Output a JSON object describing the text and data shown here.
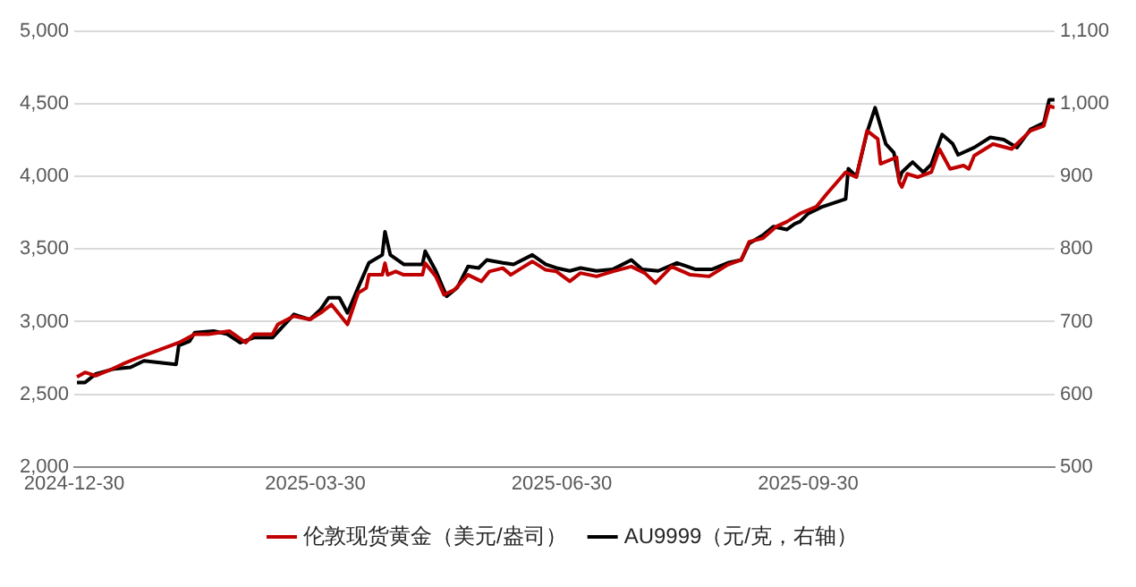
{
  "chart_data": {
    "type": "line",
    "xlim": [
      "2024-12-30",
      "2025-12-31"
    ],
    "xticks": [
      "2024-12-30",
      "2025-03-30",
      "2025-06-30",
      "2025-09-30"
    ],
    "ylim": [
      2000,
      5000
    ],
    "yticks": [
      {
        "value": 2000,
        "label": "2,000"
      },
      {
        "value": 2500,
        "label": "2,500"
      },
      {
        "value": 3000,
        "label": "3,000"
      },
      {
        "value": 3500,
        "label": "3,500"
      },
      {
        "value": 4000,
        "label": "4,000"
      },
      {
        "value": 4500,
        "label": "4,500"
      },
      {
        "value": 5000,
        "label": "5,000"
      }
    ],
    "y2lim": [
      500,
      1100
    ],
    "y2ticks": [
      500,
      600,
      700,
      800,
      900,
      {
        "value": 1000,
        "label": "1,000"
      },
      {
        "value": 1100,
        "label": "1,100"
      }
    ],
    "grid": "y",
    "legend": "bottom",
    "marker": "none",
    "line_style": "solid",
    "series": [
      {
        "name": "伦敦现货黄金（美元/盎司）",
        "color": "#c00000",
        "x": [
          "2024-12-31",
          "2025-01-03",
          "2025-01-07",
          "2025-01-13",
          "2025-01-17",
          "2025-01-23",
          "2025-02-07",
          "2025-02-13",
          "2025-02-18",
          "2025-02-26",
          "2025-03-04",
          "2025-03-07",
          "2025-03-14",
          "2025-03-16",
          "2025-03-22",
          "2025-03-28",
          "2025-04-01",
          "2025-04-05",
          "2025-04-11",
          "2025-04-15",
          "2025-04-18",
          "2025-04-19",
          "2025-04-24",
          "2025-04-25",
          "2025-04-26",
          "2025-04-29",
          "2025-05-02",
          "2025-05-09",
          "2025-05-10",
          "2025-05-14",
          "2025-05-17",
          "2025-05-21",
          "2025-05-26",
          "2025-05-31",
          "2025-06-03",
          "2025-06-08",
          "2025-06-11",
          "2025-06-15",
          "2025-06-19",
          "2025-06-24",
          "2025-06-28",
          "2025-07-03",
          "2025-07-07",
          "2025-07-13",
          "2025-07-19",
          "2025-07-26",
          "2025-07-31",
          "2025-08-04",
          "2025-08-10",
          "2025-08-17",
          "2025-08-24",
          "2025-08-31",
          "2025-09-05",
          "2025-09-08",
          "2025-09-13",
          "2025-09-18",
          "2025-09-22",
          "2025-09-27",
          "2025-10-03",
          "2025-10-07",
          "2025-10-14",
          "2025-10-18",
          "2025-10-22",
          "2025-10-26",
          "2025-10-27",
          "2025-11-02",
          "2025-11-03",
          "2025-11-04",
          "2025-11-06",
          "2025-11-10",
          "2025-11-15",
          "2025-11-18",
          "2025-11-22",
          "2025-11-27",
          "2025-11-29",
          "2025-12-01",
          "2025-12-08",
          "2025-12-15",
          "2025-12-22",
          "2025-12-27",
          "2025-12-29",
          "2025-12-31"
        ],
        "values": [
          2619,
          2650,
          2627,
          2673,
          2707,
          2753,
          2855,
          2913,
          2913,
          2935,
          2855,
          2913,
          2913,
          2981,
          3038,
          3015,
          3061,
          3118,
          2981,
          3198,
          3232,
          3323,
          3323,
          3403,
          3323,
          3346,
          3323,
          3323,
          3403,
          3312,
          3186,
          3220,
          3323,
          3278,
          3346,
          3369,
          3323,
          3369,
          3415,
          3357,
          3346,
          3278,
          3335,
          3312,
          3346,
          3380,
          3335,
          3266,
          3380,
          3323,
          3312,
          3392,
          3426,
          3551,
          3574,
          3654,
          3688,
          3745,
          3791,
          3882,
          4030,
          3996,
          4316,
          4259,
          4088,
          4133,
          3962,
          3928,
          4019,
          3996,
          4030,
          4190,
          4053,
          4076,
          4053,
          4144,
          4224,
          4190,
          4316,
          4350,
          4487,
          4475
        ]
      },
      {
        "name": "AU9999（元/克，右轴）",
        "color": "#000000",
        "axis": "y2",
        "x": [
          "2024-12-31",
          "2025-01-03",
          "2025-01-07",
          "2025-01-14",
          "2025-01-20",
          "2025-01-25",
          "2025-02-06",
          "2025-02-07",
          "2025-02-11",
          "2025-02-13",
          "2025-02-20",
          "2025-02-25",
          "2025-03-02",
          "2025-03-07",
          "2025-03-14",
          "2025-03-22",
          "2025-03-28",
          "2025-04-01",
          "2025-04-04",
          "2025-04-08",
          "2025-04-11",
          "2025-04-15",
          "2025-04-19",
          "2025-04-24",
          "2025-04-25",
          "2025-04-27",
          "2025-05-02",
          "2025-05-09",
          "2025-05-10",
          "2025-05-14",
          "2025-05-18",
          "2025-05-22",
          "2025-05-26",
          "2025-05-30",
          "2025-06-02",
          "2025-06-08",
          "2025-06-12",
          "2025-06-19",
          "2025-06-24",
          "2025-06-28",
          "2025-07-03",
          "2025-07-07",
          "2025-07-13",
          "2025-07-19",
          "2025-07-26",
          "2025-07-30",
          "2025-08-05",
          "2025-08-12",
          "2025-08-19",
          "2025-08-25",
          "2025-08-31",
          "2025-09-05",
          "2025-09-08",
          "2025-09-13",
          "2025-09-17",
          "2025-09-22",
          "2025-09-25",
          "2025-09-27",
          "2025-09-30",
          "2025-10-05",
          "2025-10-14",
          "2025-10-15",
          "2025-10-18",
          "2025-10-22",
          "2025-10-25",
          "2025-10-29",
          "2025-11-01",
          "2025-11-03",
          "2025-11-04",
          "2025-11-08",
          "2025-11-12",
          "2025-11-15",
          "2025-11-19",
          "2025-11-23",
          "2025-11-25",
          "2025-12-01",
          "2025-12-07",
          "2025-12-12",
          "2025-12-17",
          "2025-12-22",
          "2025-12-27",
          "2025-12-29",
          "2025-12-31"
        ],
        "values": [
          616,
          616,
          628,
          635,
          637,
          646,
          641,
          667,
          673,
          685,
          687,
          683,
          671,
          678,
          678,
          710,
          703,
          717,
          733,
          733,
          712,
          747,
          781,
          792,
          824,
          792,
          779,
          779,
          797,
          770,
          735,
          747,
          776,
          774,
          785,
          781,
          779,
          792,
          779,
          774,
          770,
          774,
          770,
          772,
          785,
          772,
          770,
          781,
          772,
          772,
          781,
          785,
          808,
          819,
          831,
          827,
          835,
          838,
          849,
          858,
          869,
          911,
          900,
          961,
          995,
          945,
          933,
          895,
          906,
          920,
          906,
          917,
          958,
          945,
          930,
          940,
          954,
          951,
          940,
          965,
          974,
          1006,
          1006
        ]
      }
    ]
  }
}
